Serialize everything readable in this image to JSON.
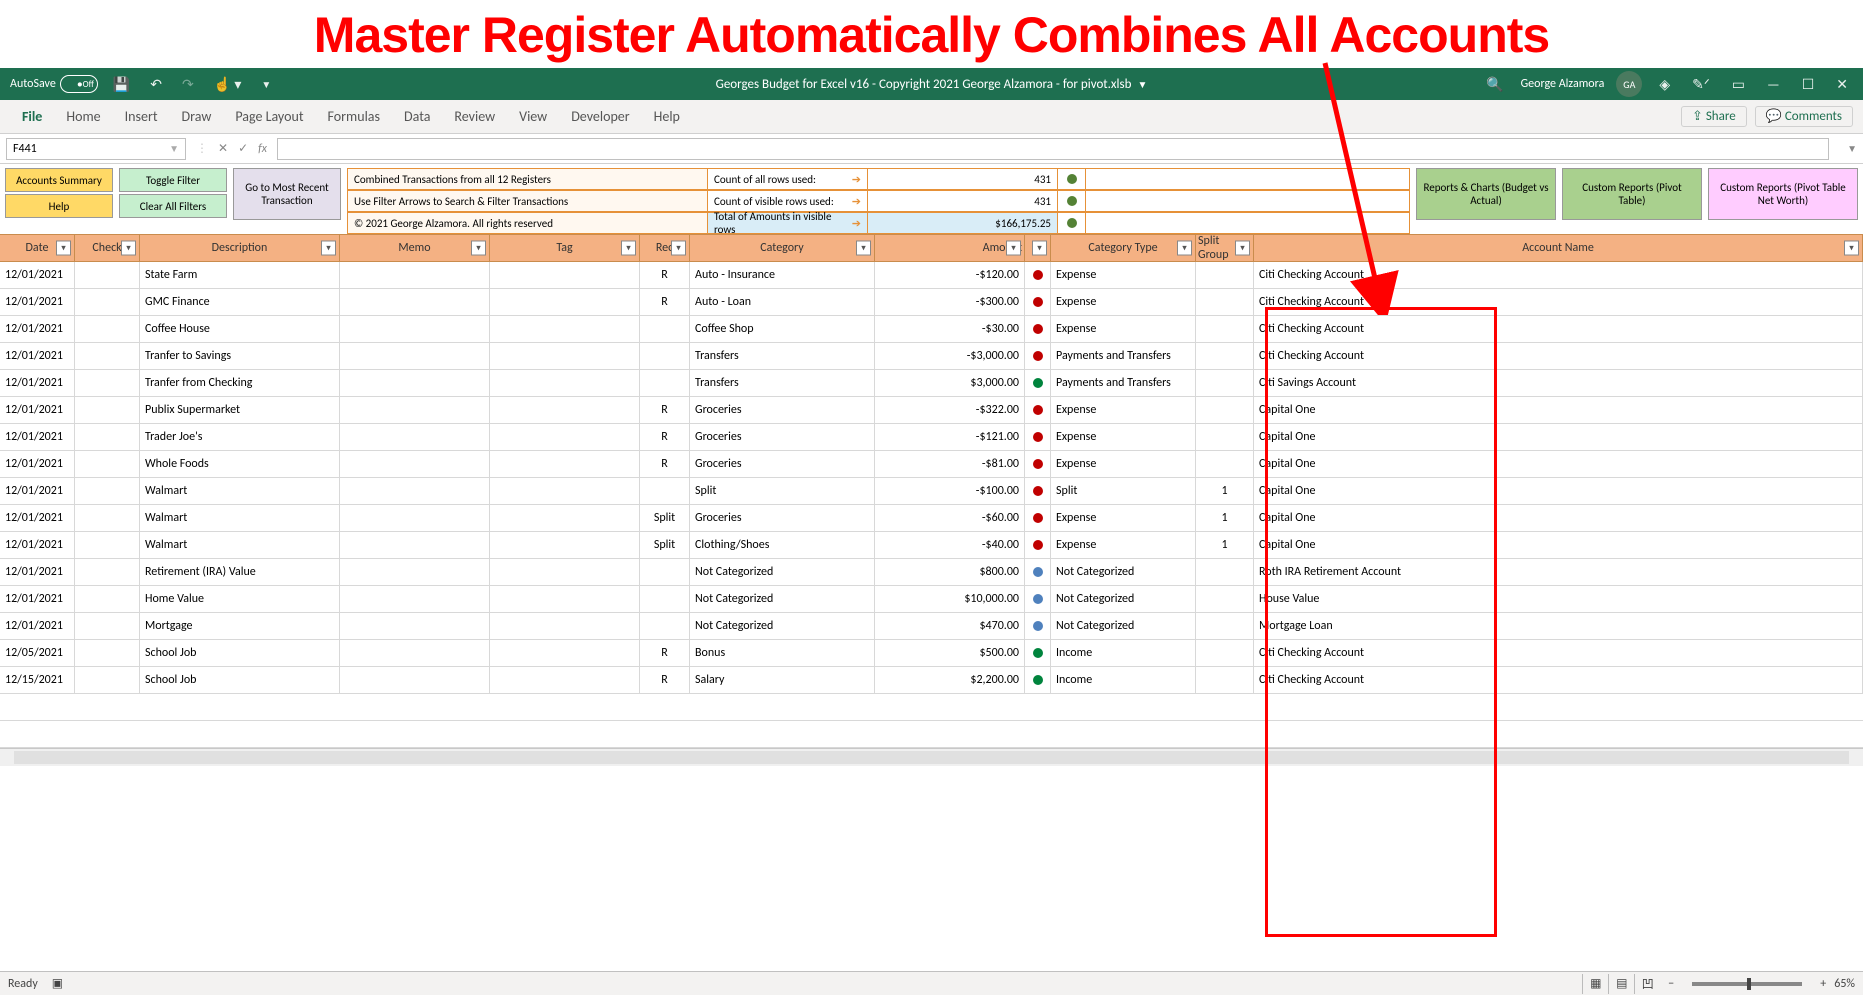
{
  "hero_title": "Master Register Automatically Combines All Accounts",
  "titlebar": {
    "autosave_label": "AutoSave",
    "autosave_state": "Off",
    "doc_title": "Georges Budget for Excel v16 - Copyright 2021 George Alzamora - for pivot.xlsb",
    "user_name": "George Alzamora",
    "user_initials": "GA"
  },
  "ribbon": {
    "tabs": [
      "File",
      "Home",
      "Insert",
      "Draw",
      "Page Layout",
      "Formulas",
      "Data",
      "Review",
      "View",
      "Developer",
      "Help"
    ],
    "share": "Share",
    "comments": "Comments"
  },
  "name_box": "F441",
  "dashboard": {
    "buttons": {
      "accounts_summary": "Accounts Summary",
      "toggle_filter": "Toggle Filter",
      "help": "Help",
      "clear_filters": "Clear All Filters",
      "goto_recent": "Go to Most Recent Transaction",
      "reports_charts": "Reports & Charts (Budget vs Actual)",
      "custom_reports": "Custom Reports (Pivot Table)",
      "custom_reports_networth": "Custom Reports (Pivot Table Net Worth)"
    },
    "info": {
      "line1": "Combined Transactions from all 12 Registers",
      "line2": "Use Filter Arrows to Search & Filter Transactions",
      "line3": "© 2021 George Alzamora. All rights reserved",
      "count_all_label": "Count of all rows used:",
      "count_all_val": "431",
      "count_vis_label": "Count of visible rows used:",
      "count_vis_val": "431",
      "total_label": "Total of Amounts in visible rows",
      "total_val": "$166,175.25"
    }
  },
  "columns": [
    "Date",
    "Check",
    "Description",
    "Memo",
    "Tag",
    "Rec",
    "Category",
    "Amount",
    "",
    "Category Type",
    "Split Group",
    "Account Name"
  ],
  "rows": [
    {
      "date": "12/01/2021",
      "desc": "State Farm",
      "rec": "R",
      "cat": "Auto - Insurance",
      "amt": "-$120.00",
      "d": "re",
      "type": "Expense",
      "split": "",
      "acct": "Citi Checking Account"
    },
    {
      "date": "12/01/2021",
      "desc": "GMC Finance",
      "rec": "R",
      "cat": "Auto - Loan",
      "amt": "-$300.00",
      "d": "re",
      "type": "Expense",
      "split": "",
      "acct": "Citi Checking Account"
    },
    {
      "date": "12/01/2021",
      "desc": "Coffee House",
      "rec": "",
      "cat": "Coffee Shop",
      "amt": "-$30.00",
      "d": "re",
      "type": "Expense",
      "split": "",
      "acct": "Citi Checking Account"
    },
    {
      "date": "12/01/2021",
      "desc": "Tranfer to Savings",
      "rec": "",
      "cat": "Transfers",
      "amt": "-$3,000.00",
      "d": "re",
      "type": "Payments and Transfers",
      "split": "",
      "acct": "Citi Checking Account"
    },
    {
      "date": "12/01/2021",
      "desc": "Tranfer from Checking",
      "rec": "",
      "cat": "Transfers",
      "amt": "$3,000.00",
      "d": "gr",
      "type": "Payments and Transfers",
      "split": "",
      "acct": "Citi Savings Account"
    },
    {
      "date": "12/01/2021",
      "desc": "Publix Supermarket",
      "rec": "R",
      "cat": "Groceries",
      "amt": "-$322.00",
      "d": "re",
      "type": "Expense",
      "split": "",
      "acct": "Capital One"
    },
    {
      "date": "12/01/2021",
      "desc": "Trader Joe's",
      "rec": "R",
      "cat": "Groceries",
      "amt": "-$121.00",
      "d": "re",
      "type": "Expense",
      "split": "",
      "acct": "Capital One"
    },
    {
      "date": "12/01/2021",
      "desc": "Whole Foods",
      "rec": "R",
      "cat": "Groceries",
      "amt": "-$81.00",
      "d": "re",
      "type": "Expense",
      "split": "",
      "acct": "Capital One"
    },
    {
      "date": "12/01/2021",
      "desc": "Walmart",
      "rec": "",
      "cat": "Split",
      "amt": "-$100.00",
      "d": "re",
      "type": "Split",
      "split": "1",
      "acct": "Capital One"
    },
    {
      "date": "12/01/2021",
      "desc": "Walmart",
      "rec": "Split",
      "cat": "Groceries",
      "amt": "-$60.00",
      "d": "re",
      "type": "Expense",
      "split": "1",
      "acct": "Capital One"
    },
    {
      "date": "12/01/2021",
      "desc": "Walmart",
      "rec": "Split",
      "cat": "Clothing/Shoes",
      "amt": "-$40.00",
      "d": "re",
      "type": "Expense",
      "split": "1",
      "acct": "Capital One"
    },
    {
      "date": "12/01/2021",
      "desc": "Retirement (IRA) Value",
      "rec": "",
      "cat": "Not Categorized",
      "amt": "$800.00",
      "d": "bl",
      "type": "Not Categorized",
      "split": "",
      "acct": "Roth IRA Retirement Account"
    },
    {
      "date": "12/01/2021",
      "desc": "Home Value",
      "rec": "",
      "cat": "Not Categorized",
      "amt": "$10,000.00",
      "d": "bl",
      "type": "Not Categorized",
      "split": "",
      "acct": "House Value"
    },
    {
      "date": "12/01/2021",
      "desc": "Mortgage",
      "rec": "",
      "cat": "Not Categorized",
      "amt": "$470.00",
      "d": "bl",
      "type": "Not Categorized",
      "split": "",
      "acct": "Mortgage Loan"
    },
    {
      "date": "12/05/2021",
      "desc": "School Job",
      "rec": "R",
      "cat": "Bonus",
      "amt": "$500.00",
      "d": "gr",
      "type": "Income",
      "split": "",
      "acct": "Citi Checking Account"
    },
    {
      "date": "12/15/2021",
      "desc": "School Job",
      "rec": "R",
      "cat": "Salary",
      "amt": "$2,200.00",
      "d": "gr",
      "type": "Income",
      "split": "",
      "acct": "Citi Checking Account"
    }
  ],
  "status": {
    "ready": "Ready",
    "zoom": "65%"
  }
}
